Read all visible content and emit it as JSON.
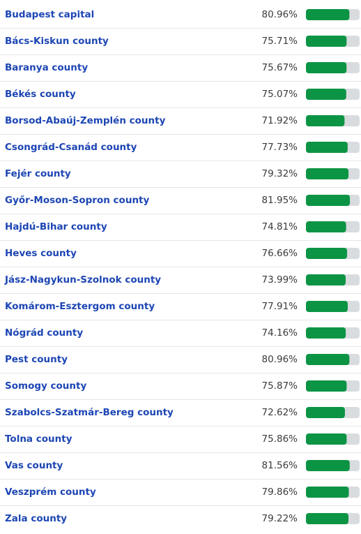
{
  "chart_data": {
    "type": "bar",
    "orientation": "horizontal",
    "categories": [
      "Budapest capital",
      "Bács-Kiskun county",
      "Baranya county",
      "Békés county",
      "Borsod-Abaúj-Zemplén county",
      "Csongrád-Csanád county",
      "Fejér county",
      "Győr-Moson-Sopron county",
      "Hajdú-Bihar county",
      "Heves county",
      "Jász-Nagykun-Szolnok county",
      "Komárom-Esztergom county",
      "Nógrád county",
      "Pest county",
      "Somogy county",
      "Szabolcs-Szatmár-Bereg county",
      "Tolna county",
      "Vas county",
      "Veszprém county",
      "Zala county"
    ],
    "values": [
      80.96,
      75.71,
      75.67,
      75.07,
      71.92,
      77.73,
      79.32,
      81.95,
      74.81,
      76.66,
      73.99,
      77.91,
      74.16,
      80.96,
      75.87,
      72.62,
      75.86,
      81.56,
      79.86,
      79.22
    ],
    "value_labels": [
      "80.96%",
      "75.71%",
      "75.67%",
      "75.07%",
      "71.92%",
      "77.73%",
      "79.32%",
      "81.95%",
      "74.81%",
      "76.66%",
      "73.99%",
      "77.91%",
      "74.16%",
      "80.96%",
      "75.87%",
      "72.62%",
      "75.86%",
      "81.56%",
      "79.86%",
      "79.22%"
    ],
    "xlim": [
      0,
      100
    ],
    "color": "#0b9444",
    "track_color": "#d9dcdf"
  }
}
